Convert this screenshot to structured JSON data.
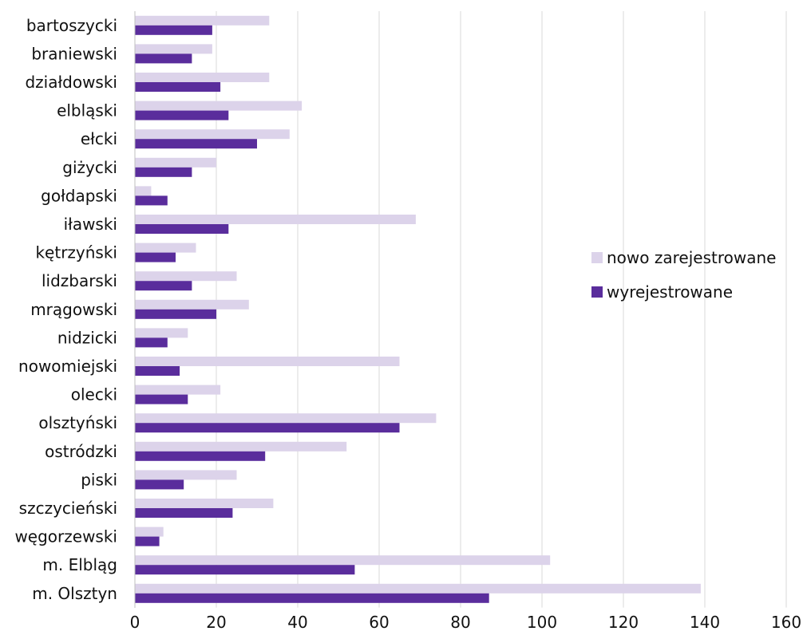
{
  "chart_data": {
    "type": "bar",
    "orientation": "horizontal",
    "categories": [
      "bartoszycki",
      "braniewski",
      "działdowski",
      "elbląski",
      "ełcki",
      "giżycki",
      "gołdapski",
      "iławski",
      "kętrzyński",
      "lidzbarski",
      "mrągowski",
      "nidzicki",
      "nowomiejski",
      "olecki",
      "olsztyński",
      "ostródzki",
      "piski",
      "szczycieński",
      "węgorzewski",
      "m. Elbląg",
      "m. Olsztyn"
    ],
    "series": [
      {
        "name": "nowo zarejestrowane",
        "color": "#dcd3ea",
        "values": [
          33,
          19,
          33,
          41,
          38,
          20,
          4,
          69,
          15,
          25,
          28,
          13,
          65,
          21,
          74,
          52,
          25,
          34,
          7,
          102,
          139
        ]
      },
      {
        "name": "wyrejestrowane",
        "color": "#5a2d9c",
        "values": [
          19,
          14,
          21,
          23,
          30,
          14,
          8,
          23,
          10,
          14,
          20,
          8,
          11,
          13,
          65,
          32,
          12,
          24,
          6,
          54,
          87
        ]
      }
    ],
    "xlim": [
      0,
      160
    ],
    "xticks": [
      0,
      20,
      40,
      60,
      80,
      100,
      120,
      140,
      160
    ],
    "grid": true,
    "legend_position": "right"
  }
}
